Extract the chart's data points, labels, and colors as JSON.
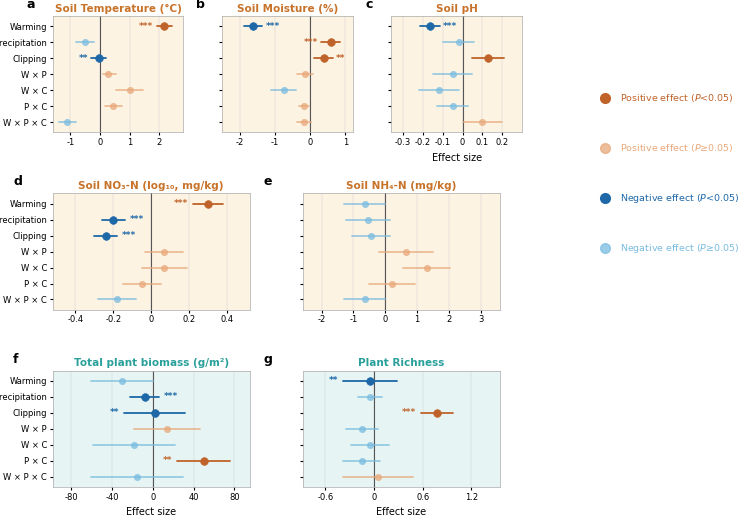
{
  "panels": {
    "a": {
      "title": "Soil Temperature (°C)",
      "title_color": "#c8732a",
      "bg_color": "#fdf3e3",
      "xlim": [
        -1.6,
        2.8
      ],
      "xticks": [
        -1,
        0,
        1,
        2
      ],
      "xticklabels": [
        "-1",
        "0",
        "1",
        "2"
      ],
      "centers": [
        2.15,
        -0.52,
        -0.05,
        0.28,
        1.0,
        0.45,
        -1.1
      ],
      "ci_low": [
        1.9,
        -0.82,
        -0.3,
        0.08,
        0.55,
        0.18,
        -1.4
      ],
      "ci_high": [
        2.42,
        -0.22,
        0.2,
        0.54,
        1.45,
        0.72,
        -0.8
      ],
      "colors": [
        "#c0632a",
        "#7abce0",
        "#1e68a8",
        "#e8a87a",
        "#e8a87a",
        "#e8a87a",
        "#7abce0"
      ],
      "stars": [
        "***",
        "",
        "**",
        "",
        "",
        "",
        ""
      ],
      "star_side": [
        "left",
        "",
        "left",
        "",
        "",
        "",
        ""
      ]
    },
    "b": {
      "title": "Soil Moisture (%)",
      "title_color": "#c8732a",
      "bg_color": "#fdf3e3",
      "xlim": [
        -2.5,
        1.2
      ],
      "xticks": [
        -2,
        -1,
        0,
        1
      ],
      "xticklabels": [
        "-2",
        "-1",
        "0",
        "1"
      ],
      "centers": [
        -1.62,
        0.58,
        0.38,
        -0.15,
        -0.75,
        -0.18,
        -0.18
      ],
      "ci_low": [
        -1.88,
        0.32,
        0.12,
        -0.38,
        -1.1,
        -0.32,
        -0.38
      ],
      "ci_high": [
        -1.36,
        0.84,
        0.64,
        0.08,
        -0.4,
        -0.04,
        0.02
      ],
      "colors": [
        "#1e68a8",
        "#c0632a",
        "#c0632a",
        "#e8a87a",
        "#7abce0",
        "#e8a87a",
        "#e8a87a"
      ],
      "stars": [
        "***",
        "***",
        "**",
        "",
        "",
        "",
        ""
      ],
      "star_side": [
        "right",
        "left",
        "right",
        "",
        "",
        "",
        ""
      ]
    },
    "c": {
      "title": "Soil pH",
      "title_color": "#c8732a",
      "bg_color": "#fdf3e3",
      "xlim": [
        -0.36,
        0.3
      ],
      "xticks": [
        -0.3,
        -0.2,
        -0.1,
        0,
        0.1,
        0.2
      ],
      "xticklabels": [
        "-0.3",
        "-0.2",
        "-0.1",
        "0",
        "0.1",
        "0.2"
      ],
      "centers": [
        -0.165,
        -0.02,
        0.13,
        -0.05,
        -0.12,
        -0.05,
        0.1
      ],
      "ci_low": [
        -0.215,
        -0.1,
        0.05,
        -0.15,
        -0.22,
        -0.13,
        0.0
      ],
      "ci_high": [
        -0.115,
        0.06,
        0.21,
        0.05,
        -0.02,
        0.03,
        0.2
      ],
      "colors": [
        "#1e68a8",
        "#7abce0",
        "#c0632a",
        "#7abce0",
        "#7abce0",
        "#7abce0",
        "#e8a87a"
      ],
      "stars": [
        "***",
        "",
        "",
        "",
        "",
        "",
        ""
      ],
      "star_side": [
        "right",
        "",
        "",
        "",
        "",
        "",
        ""
      ]
    },
    "d": {
      "title": "Soil NO₃-N (log₁₀, mg/kg)",
      "title_color": "#c8732a",
      "bg_color": "#fdf3e3",
      "xlim": [
        -0.52,
        0.52
      ],
      "xticks": [
        -0.4,
        -0.2,
        0,
        0.2,
        0.4
      ],
      "xticklabels": [
        "-0.4",
        "-0.2",
        "0",
        "0.2",
        "0.4"
      ],
      "centers": [
        0.3,
        -0.2,
        -0.24,
        0.07,
        0.07,
        -0.05,
        -0.18
      ],
      "ci_low": [
        0.22,
        -0.26,
        -0.3,
        -0.03,
        -0.05,
        -0.15,
        -0.28
      ],
      "ci_high": [
        0.38,
        -0.14,
        -0.18,
        0.17,
        0.19,
        0.05,
        -0.08
      ],
      "colors": [
        "#c0632a",
        "#1e68a8",
        "#1e68a8",
        "#e8a87a",
        "#e8a87a",
        "#e8a87a",
        "#7abce0"
      ],
      "stars": [
        "***",
        "***",
        "***",
        "",
        "",
        "",
        ""
      ],
      "star_side": [
        "left",
        "right",
        "right",
        "",
        "",
        "",
        ""
      ]
    },
    "e": {
      "title": "Soil NH₄-N (mg/kg)",
      "title_color": "#c8732a",
      "bg_color": "#fdf3e3",
      "xlim": [
        -2.6,
        3.6
      ],
      "xticks": [
        -2,
        -1,
        0,
        1,
        2,
        3
      ],
      "xticklabels": [
        "-2",
        "-1",
        "0",
        "1",
        "2",
        "3"
      ],
      "centers": [
        -0.65,
        -0.55,
        -0.45,
        0.65,
        1.3,
        0.22,
        -0.65
      ],
      "ci_low": [
        -1.3,
        -1.25,
        -1.05,
        -0.2,
        0.55,
        -0.5,
        -1.3
      ],
      "ci_high": [
        0.0,
        0.15,
        0.15,
        1.5,
        2.05,
        0.94,
        0.0
      ],
      "colors": [
        "#7abce0",
        "#7abce0",
        "#7abce0",
        "#e8a87a",
        "#e8a87a",
        "#e8a87a",
        "#7abce0"
      ],
      "stars": [
        "",
        "",
        "",
        "",
        "",
        "",
        ""
      ],
      "star_side": [
        "",
        "",
        "",
        "",
        "",
        "",
        ""
      ]
    },
    "f": {
      "title": "Total plant biomass (g/m²)",
      "title_color": "#2aa09b",
      "bg_color": "#e6f5f4",
      "xlim": [
        -98,
        95
      ],
      "xticks": [
        -80,
        -40,
        0,
        40,
        80
      ],
      "xticklabels": [
        "-80",
        "-40",
        "0",
        "40",
        "80"
      ],
      "centers": [
        -30,
        -8,
        2,
        14,
        -18,
        50,
        -15
      ],
      "ci_low": [
        -60,
        -22,
        -28,
        -18,
        -58,
        24,
        -60
      ],
      "ci_high": [
        0,
        6,
        32,
        46,
        22,
        76,
        30
      ],
      "colors": [
        "#7abce0",
        "#1e68a8",
        "#1e68a8",
        "#e8a87a",
        "#7abce0",
        "#c0632a",
        "#7abce0"
      ],
      "stars": [
        "",
        "***",
        "**",
        "",
        "",
        "**",
        ""
      ],
      "star_side": [
        "",
        "right",
        "left",
        "",
        "",
        "left",
        ""
      ]
    },
    "g": {
      "title": "Plant Richness",
      "title_color": "#2aa09b",
      "bg_color": "#e6f5f4",
      "xlim": [
        -0.88,
        1.55
      ],
      "xticks": [
        -0.6,
        0,
        0.6,
        1.2
      ],
      "xticklabels": [
        "-0.6",
        "0",
        "0.6",
        "1.2"
      ],
      "centers": [
        -0.05,
        -0.05,
        0.78,
        -0.15,
        -0.05,
        -0.15,
        0.05
      ],
      "ci_low": [
        -0.38,
        -0.2,
        0.58,
        -0.35,
        -0.28,
        -0.38,
        -0.38
      ],
      "ci_high": [
        0.28,
        0.1,
        0.98,
        0.05,
        0.18,
        0.08,
        0.48
      ],
      "colors": [
        "#1e68a8",
        "#7abce0",
        "#c0632a",
        "#7abce0",
        "#7abce0",
        "#7abce0",
        "#e8a87a"
      ],
      "stars": [
        "**",
        "",
        "***",
        "",
        "",
        "",
        ""
      ],
      "star_side": [
        "left",
        "",
        "left",
        "",
        "",
        "",
        ""
      ]
    }
  },
  "treatments": [
    "Warming",
    "Precipitation",
    "Clipping",
    "W × P",
    "W × C",
    "P × C",
    "W × P × C"
  ],
  "color_dark_orange": "#c0632a",
  "color_light_orange": "#e8a87a",
  "color_dark_blue": "#1e68a8",
  "color_light_blue": "#7abce0",
  "legend_entries": [
    {
      "color": "#c0632a",
      "label": "Positive effect (",
      "ptext": "P<0.05)",
      "dot_filled": true
    },
    {
      "color": "#e8a87a",
      "label": "Positive effect (",
      "ptext": "P≥0.05)",
      "dot_filled": false
    },
    {
      "color": "#1e68a8",
      "label": "Negative effect (",
      "ptext": "P<0.05)",
      "dot_filled": true
    },
    {
      "color": "#7abce0",
      "label": "Negative effect (",
      "ptext": "P≥0.05)",
      "dot_filled": false
    }
  ]
}
